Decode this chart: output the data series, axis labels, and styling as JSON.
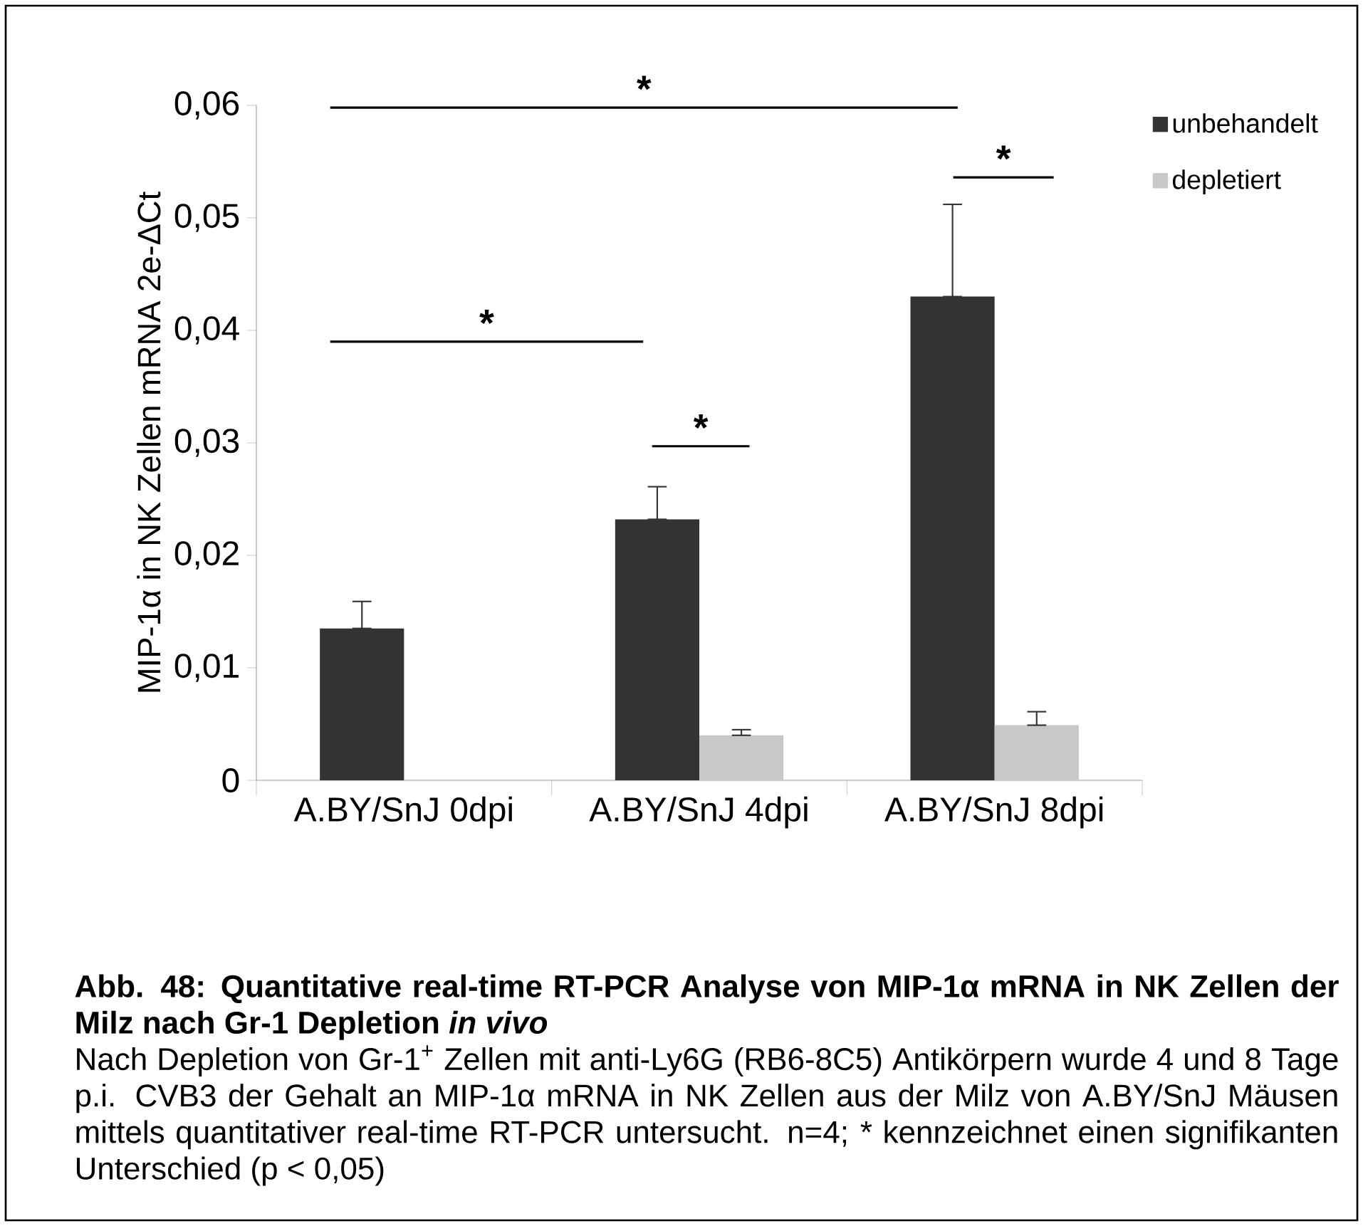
{
  "chart_data": {
    "type": "bar",
    "title": "Abb. 48: Quantitative real-time RT-PCR Analyse von MIP-1α mRNA in NK Zellen der Milz nach Gr-1 Depletion *in vivo*",
    "ylabel": "MIP-1α in NK Zellen mRNA 2e-ΔCt",
    "categories": [
      "A.BY/SnJ 0dpi",
      "A.BY/SnJ 4dpi",
      "A.BY/SnJ 8dpi"
    ],
    "series": [
      {
        "name": "unbehandelt",
        "color": "#333333",
        "values": [
          0.0135,
          0.0232,
          0.043
        ],
        "errors": [
          [
            0.0135,
            0.0159
          ],
          [
            0.0232,
            0.0261
          ],
          [
            0.043,
            0.0512
          ]
        ]
      },
      {
        "name": "depletiert",
        "color": "#c8c8c8",
        "values": [
          null,
          0.004,
          0.0049
        ],
        "errors": [
          null,
          [
            0.004,
            0.0045
          ],
          [
            0.0049,
            0.0061
          ]
        ]
      }
    ],
    "ylim": [
      0,
      0.06
    ],
    "yticks": [
      0,
      {
        "value": 0.01,
        "label": "0,01"
      },
      {
        "value": 0.02,
        "label": "0,02"
      },
      {
        "value": 0.03,
        "label": "0,03"
      },
      {
        "value": 0.04,
        "label": "0,04"
      },
      {
        "value": 0.05,
        "label": "0,05"
      },
      {
        "value": 0.06,
        "label": "0,06"
      }
    ],
    "legend": "top right",
    "annotations": [
      "Nach Depletion von Gr-1$^{+}$ Zellen mit anti-Ly6G (RB6-8C5) Antikörpern wurde 4 und 8 Tage p.i. CVB3 der Gehalt an MIP-1α mRNA in NK Zellen aus der Milz von A.BY/SnJ Mäusen mittels quantitativer real-time RT-PCR untersucht. n=4; * kennzeichnet einen signifikanten Unterschied (p < 0,05)",
      "*",
      "*",
      "*",
      "*"
    ]
  }
}
